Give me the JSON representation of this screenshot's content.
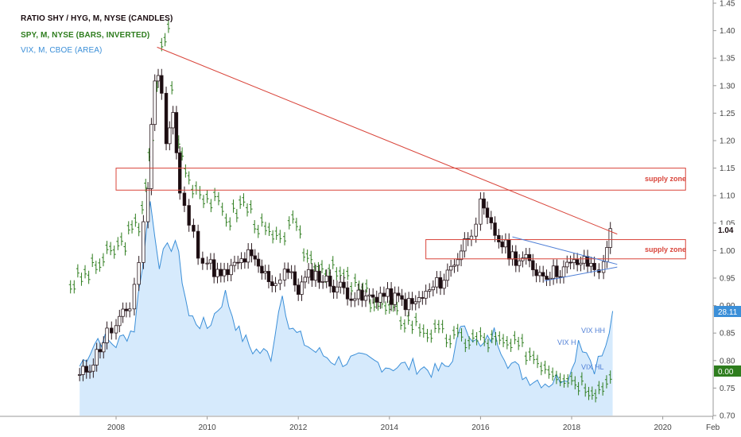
{
  "legend": {
    "ratio": "RATIO SHY / HYG, M, NYSE (CANDLES)",
    "spy": "SPY, M, NYSE (BARS, INVERTED)",
    "vix": "VIX, M, CBOE (AREA)"
  },
  "colors": {
    "candle_up_fill": "#ffffff",
    "candle_down_fill": "#1a0c10",
    "candle_outline": "#2b1a1f",
    "spy_bars": "#2e7d1e",
    "vix_line": "#3b8fd8",
    "vix_fill": "#d6eafc",
    "trendline": "#d9443a",
    "supply_zone": "#d9443a",
    "triangle": "#4f7fd6",
    "vix_badge": "#3b8fd8",
    "ratio_badge": "#1a0c10",
    "spy_badge": "#2e7d1e"
  },
  "axis": {
    "y_ticks": [
      "1.45",
      "1.40",
      "1.35",
      "1.30",
      "1.25",
      "1.20",
      "1.15",
      "1.10",
      "1.05",
      "1.00",
      "0.95",
      "0.90",
      "0.85",
      "0.80",
      "0.75",
      "0.70"
    ],
    "x_ticks": [
      "2008",
      "2010",
      "2012",
      "2014",
      "2016",
      "2018",
      "2020",
      "Feb"
    ],
    "badges": {
      "ratio": "1.04",
      "vix": "28.11",
      "spy": "0.00"
    }
  },
  "annotations": {
    "supply_upper": "supply zone",
    "supply_lower": "supply zone",
    "vix_h": "VIX H",
    "vix_hh": "VIX HH",
    "vix_hl": "VIX HL"
  },
  "chart_data": {
    "type": "line",
    "ylim": [
      0.7,
      1.45
    ],
    "y_scale": "linear",
    "series": [
      {
        "name": "RATIO SHY / HYG, M, NYSE (CANDLES)",
        "style": "candles",
        "x": [
          2007.2,
          2007.5,
          2007.8,
          2008.0,
          2008.3,
          2008.5,
          2008.7,
          2008.85,
          2009.0,
          2009.1,
          2009.25,
          2009.4,
          2009.6,
          2009.8,
          2010.0,
          2010.3,
          2010.6,
          2010.9,
          2011.2,
          2011.5,
          2011.7,
          2012.0,
          2012.3,
          2012.7,
          2013.0,
          2013.4,
          2013.8,
          2014.2,
          2014.5,
          2014.8,
          2015.2,
          2015.5,
          2015.8,
          2016.0,
          2016.15,
          2016.4,
          2016.7,
          2017.0,
          2017.3,
          2017.6,
          2017.9,
          2018.2,
          2018.5,
          2018.7,
          2018.85
        ],
        "values": [
          0.77,
          0.8,
          0.85,
          0.86,
          0.9,
          0.98,
          1.12,
          1.32,
          1.3,
          1.2,
          1.25,
          1.1,
          1.05,
          1.0,
          0.98,
          0.95,
          0.97,
          0.99,
          0.96,
          0.94,
          0.97,
          0.93,
          0.96,
          0.94,
          0.93,
          0.91,
          0.92,
          0.91,
          0.9,
          0.92,
          0.95,
          0.99,
          1.04,
          1.08,
          1.05,
          1.02,
          0.99,
          0.98,
          0.96,
          0.96,
          0.97,
          0.98,
          0.97,
          0.97,
          1.04
        ]
      },
      {
        "name": "SPY, M, NYSE (BARS, INVERTED)",
        "style": "bars",
        "x": [
          2007.0,
          2007.4,
          2007.8,
          2008.2,
          2008.5,
          2008.8,
          2009.0,
          2009.15,
          2009.3,
          2009.6,
          2010.0,
          2010.5,
          2010.8,
          2011.2,
          2011.6,
          2011.8,
          2012.2,
          2012.6,
          2013.0,
          2013.5,
          2014.0,
          2014.5,
          2015.0,
          2015.5,
          2016.0,
          2016.5,
          2017.0,
          2017.5,
          2018.0,
          2018.3,
          2018.6,
          2018.85
        ],
        "values": [
          0.94,
          0.96,
          0.99,
          1.02,
          1.05,
          1.2,
          1.38,
          1.4,
          1.22,
          1.13,
          1.1,
          1.06,
          1.09,
          1.04,
          1.01,
          1.06,
          0.99,
          0.97,
          0.95,
          0.92,
          0.89,
          0.87,
          0.85,
          0.84,
          0.84,
          0.83,
          0.82,
          0.79,
          0.77,
          0.76,
          0.75,
          0.77
        ]
      },
      {
        "name": "VIX, M, CBOE (AREA)",
        "style": "area",
        "x": [
          2007.2,
          2007.6,
          2008.0,
          2008.4,
          2008.75,
          2008.95,
          2009.3,
          2009.6,
          2010.0,
          2010.4,
          2010.7,
          2011.0,
          2011.4,
          2011.65,
          2011.8,
          2012.3,
          2012.8,
          2013.5,
          2014.0,
          2014.6,
          2015.0,
          2015.3,
          2015.65,
          2016.0,
          2016.3,
          2016.6,
          2017.0,
          2017.5,
          2018.0,
          2018.15,
          2018.5,
          2018.75,
          2018.9
        ],
        "values": [
          0.79,
          0.84,
          0.83,
          0.86,
          1.09,
          0.98,
          1.02,
          0.88,
          0.86,
          0.92,
          0.85,
          0.82,
          0.81,
          0.93,
          0.86,
          0.82,
          0.8,
          0.8,
          0.79,
          0.79,
          0.78,
          0.79,
          0.87,
          0.82,
          0.85,
          0.8,
          0.77,
          0.76,
          0.78,
          0.84,
          0.79,
          0.82,
          0.89
        ]
      }
    ],
    "overlays": {
      "trendline": [
        [
          2008.9,
          1.37
        ],
        [
          2019.0,
          1.03
        ]
      ],
      "supply_zone_upper": {
        "x": [
          2008.0,
          2020.5
        ],
        "y": [
          1.11,
          1.15
        ]
      },
      "supply_zone_lower": {
        "x": [
          2014.8,
          2020.5
        ],
        "y": [
          0.985,
          1.02
        ]
      },
      "triangle_top": [
        [
          2016.7,
          1.025
        ],
        [
          2019.0,
          0.975
        ]
      ],
      "triangle_bottom": [
        [
          2017.4,
          0.945
        ],
        [
          2019.0,
          0.97
        ]
      ]
    }
  }
}
